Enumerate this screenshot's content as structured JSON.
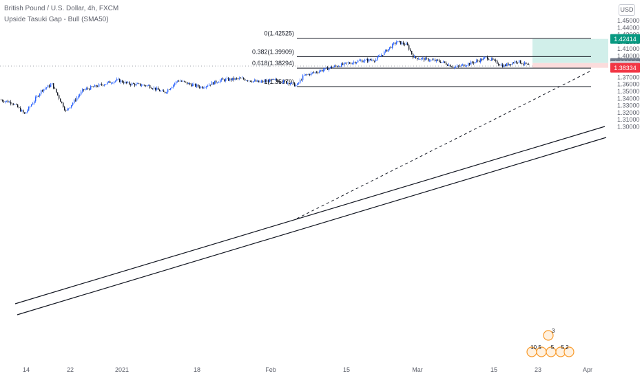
{
  "header": {
    "title": "British Pound / U.S. Dollar, 4h, FXCM",
    "subtitle": "Upside Tasuki Gap - Bull (SMA50)"
  },
  "currency": "USD",
  "chart_data": {
    "type": "line",
    "style": "candlestick price chart",
    "y_ticks": [
      "1.45000",
      "1.44000",
      "1.43000",
      "1.42000",
      "1.41000",
      "1.40000",
      "1.39000",
      "1.38000",
      "1.37000",
      "1.36000",
      "1.35000",
      "1.34000",
      "1.33000",
      "1.32000",
      "1.31000",
      "1.30000"
    ],
    "x_ticks": [
      "14",
      "22",
      "2021",
      "18",
      "Feb",
      "15",
      "Mar",
      "15",
      "23",
      "Apr"
    ],
    "ylim": [
      1.295,
      1.452
    ],
    "series": [
      {
        "x": [
          "14",
          "22",
          "2021",
          "18",
          "Feb",
          "15",
          "Mar",
          "15",
          "23"
        ],
        "values": [
          1.338,
          1.325,
          1.365,
          1.363,
          1.362,
          1.414,
          1.392,
          1.398,
          1.386
        ]
      }
    ],
    "fibonacci": [
      {
        "label": "0(1.42525)",
        "value": 1.42525
      },
      {
        "label": "0.382(1.39909)",
        "value": 1.39909
      },
      {
        "label": "0.618(1.38294)",
        "value": 1.38294
      },
      {
        "label": "1(1.35679)",
        "value": 1.35679
      }
    ],
    "price_labels": [
      {
        "text": "1.42414",
        "value": 1.42414,
        "color": "#089981"
      },
      {
        "text": "1.39014",
        "value": 1.39014,
        "color": "#707888"
      },
      {
        "text": "1.38588",
        "value": 1.38588,
        "color": "#d1d4dc"
      },
      {
        "text": "1.38334",
        "value": 1.38334,
        "color": "#f23645"
      }
    ],
    "position": {
      "target": 1.42414,
      "entry": 1.39014,
      "stop": 1.38334
    }
  },
  "colors": {
    "candle_up": "#2962ff",
    "candle_down": "#131722",
    "target_zone": "#d1efea",
    "stop_zone": "#fbdcdc",
    "trendline": "#131722"
  },
  "events": {
    "count_top": "3",
    "row_labels": [
      "10 5",
      "5",
      "5 2"
    ]
  }
}
